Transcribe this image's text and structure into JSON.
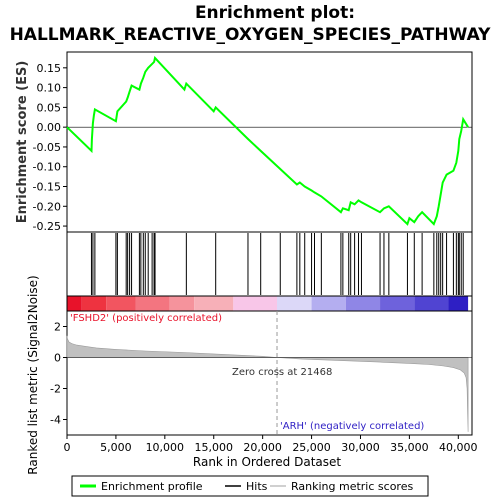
{
  "chart_data": {
    "type": "line",
    "title_lines": [
      "Enrichment plot:",
      "HALLMARK_REACTIVE_OXYGEN_SPECIES_PATHWAY"
    ],
    "es_panel": {
      "ylabel": "Enrichment score (ES)",
      "ylim": [
        -0.265,
        0.19
      ],
      "yticks": [
        -0.25,
        -0.2,
        -0.15,
        -0.1,
        -0.05,
        0.0,
        0.05,
        0.1,
        0.15
      ],
      "ytick_labels": [
        "-0.25",
        "-0.20",
        "-0.15",
        "-0.10",
        "-0.05",
        "0.00",
        "0.05",
        "0.10",
        "0.15"
      ],
      "series": [
        {
          "name": "Enrichment profile",
          "color": "#00ff00",
          "x": [
            0,
            2500,
            2550,
            2650,
            2750,
            2850,
            5000,
            5150,
            6050,
            6200,
            6400,
            6600,
            7400,
            7550,
            7800,
            8000,
            8300,
            8700,
            8900,
            9000,
            12000,
            12200,
            15000,
            15200,
            18500,
            19800,
            23500,
            23800,
            24300,
            25000,
            25300,
            26000,
            28000,
            28200,
            28800,
            29000,
            29400,
            29800,
            30100,
            32000,
            32400,
            32900,
            34800,
            35000,
            35500,
            35900,
            36300,
            37500,
            37800,
            38000,
            38200,
            38400,
            38800,
            39500,
            39800,
            40000,
            40100,
            40300,
            40500,
            41000
          ],
          "y": [
            0.0,
            -0.06,
            -0.03,
            0.01,
            0.03,
            0.045,
            0.015,
            0.04,
            0.065,
            0.075,
            0.09,
            0.105,
            0.095,
            0.11,
            0.125,
            0.14,
            0.15,
            0.16,
            0.165,
            0.175,
            0.095,
            0.11,
            0.04,
            0.05,
            -0.03,
            -0.06,
            -0.145,
            -0.14,
            -0.15,
            -0.16,
            -0.165,
            -0.175,
            -0.215,
            -0.205,
            -0.21,
            -0.19,
            -0.195,
            -0.185,
            -0.19,
            -0.215,
            -0.205,
            -0.2,
            -0.245,
            -0.23,
            -0.24,
            -0.225,
            -0.215,
            -0.245,
            -0.225,
            -0.2,
            -0.17,
            -0.14,
            -0.12,
            -0.11,
            -0.09,
            -0.06,
            -0.03,
            -0.01,
            0.02,
            0.0
          ]
        }
      ]
    },
    "hits_panel": {
      "series_name": "Hits",
      "hit_ranks": [
        2500,
        2650,
        2850,
        5000,
        5150,
        6050,
        6200,
        6400,
        6600,
        7400,
        7550,
        7800,
        8000,
        8300,
        8700,
        8900,
        9000,
        12200,
        15200,
        18500,
        19800,
        21800,
        23500,
        23800,
        24300,
        25000,
        25300,
        26000,
        28000,
        28200,
        28800,
        29000,
        29400,
        29800,
        30100,
        32000,
        32400,
        32900,
        34800,
        35500,
        36300,
        37500,
        37800,
        38000,
        38200,
        38400,
        38800,
        39500,
        39800,
        40000,
        40100,
        40300,
        40500
      ]
    },
    "rank_bar": {
      "label_positive": "'FSHD2' (positively correlated)",
      "label_negative": "'ARH' (negatively correlated)",
      "segments": [
        {
          "from": 0,
          "to": 1500,
          "color": "#e8122a"
        },
        {
          "from": 1500,
          "to": 4000,
          "color": "#ee3340"
        },
        {
          "from": 4000,
          "to": 7000,
          "color": "#f25560"
        },
        {
          "from": 7000,
          "to": 10500,
          "color": "#f37580"
        },
        {
          "from": 10500,
          "to": 13000,
          "color": "#f5939c"
        },
        {
          "from": 13000,
          "to": 17000,
          "color": "#f7b0b8"
        },
        {
          "from": 17000,
          "to": 21468,
          "color": "#f8c6e8"
        },
        {
          "from": 21468,
          "to": 25000,
          "color": "#dcd8f8"
        },
        {
          "from": 25000,
          "to": 28500,
          "color": "#b4aef0"
        },
        {
          "from": 28500,
          "to": 32000,
          "color": "#8f86e6"
        },
        {
          "from": 32000,
          "to": 35500,
          "color": "#6e62dc"
        },
        {
          "from": 35500,
          "to": 39000,
          "color": "#5044d2"
        },
        {
          "from": 39000,
          "to": 41000,
          "color": "#2e1fc4"
        }
      ]
    },
    "metric_panel": {
      "ylabel": "Ranked list metric (Signal2Noise)",
      "ylim": [
        -5,
        3
      ],
      "yticks": [
        -4,
        -2,
        0,
        2
      ],
      "ytick_labels": [
        "-4",
        "-2",
        "0",
        "2"
      ],
      "zero_cross_text": "Zero cross at 21468",
      "zero_cross": 21468,
      "color": "#c0c0c0",
      "x": [
        0,
        50,
        200,
        500,
        1000,
        2000,
        3000,
        5000,
        8000,
        12000,
        16000,
        20000,
        21468,
        24000,
        28000,
        32000,
        35000,
        37000,
        38500,
        39500,
        40200,
        40600,
        40800,
        40900,
        40950,
        41000
      ],
      "y": [
        1.4,
        1.2,
        1.0,
        0.9,
        0.8,
        0.7,
        0.62,
        0.52,
        0.42,
        0.32,
        0.2,
        0.08,
        0.0,
        -0.1,
        -0.2,
        -0.3,
        -0.38,
        -0.45,
        -0.55,
        -0.65,
        -0.8,
        -1.0,
        -1.3,
        -2.0,
        -3.5,
        -4.8
      ]
    },
    "xaxis": {
      "label": "Rank in Ordered Dataset",
      "xlim": [
        0,
        41400
      ],
      "ticks": [
        0,
        5000,
        10000,
        15000,
        20000,
        25000,
        30000,
        35000,
        40000
      ],
      "tick_labels": [
        "0",
        "5,000",
        "10,000",
        "15,000",
        "20,000",
        "25,000",
        "30,000",
        "35,000",
        "40,000"
      ]
    },
    "legend": {
      "placement": "bottom",
      "items": [
        {
          "label": "Enrichment profile",
          "color": "#00ff00"
        },
        {
          "label": "Hits",
          "color": "#000000"
        },
        {
          "label": "Ranking metric scores",
          "color": "#c0c0c0"
        }
      ]
    }
  }
}
